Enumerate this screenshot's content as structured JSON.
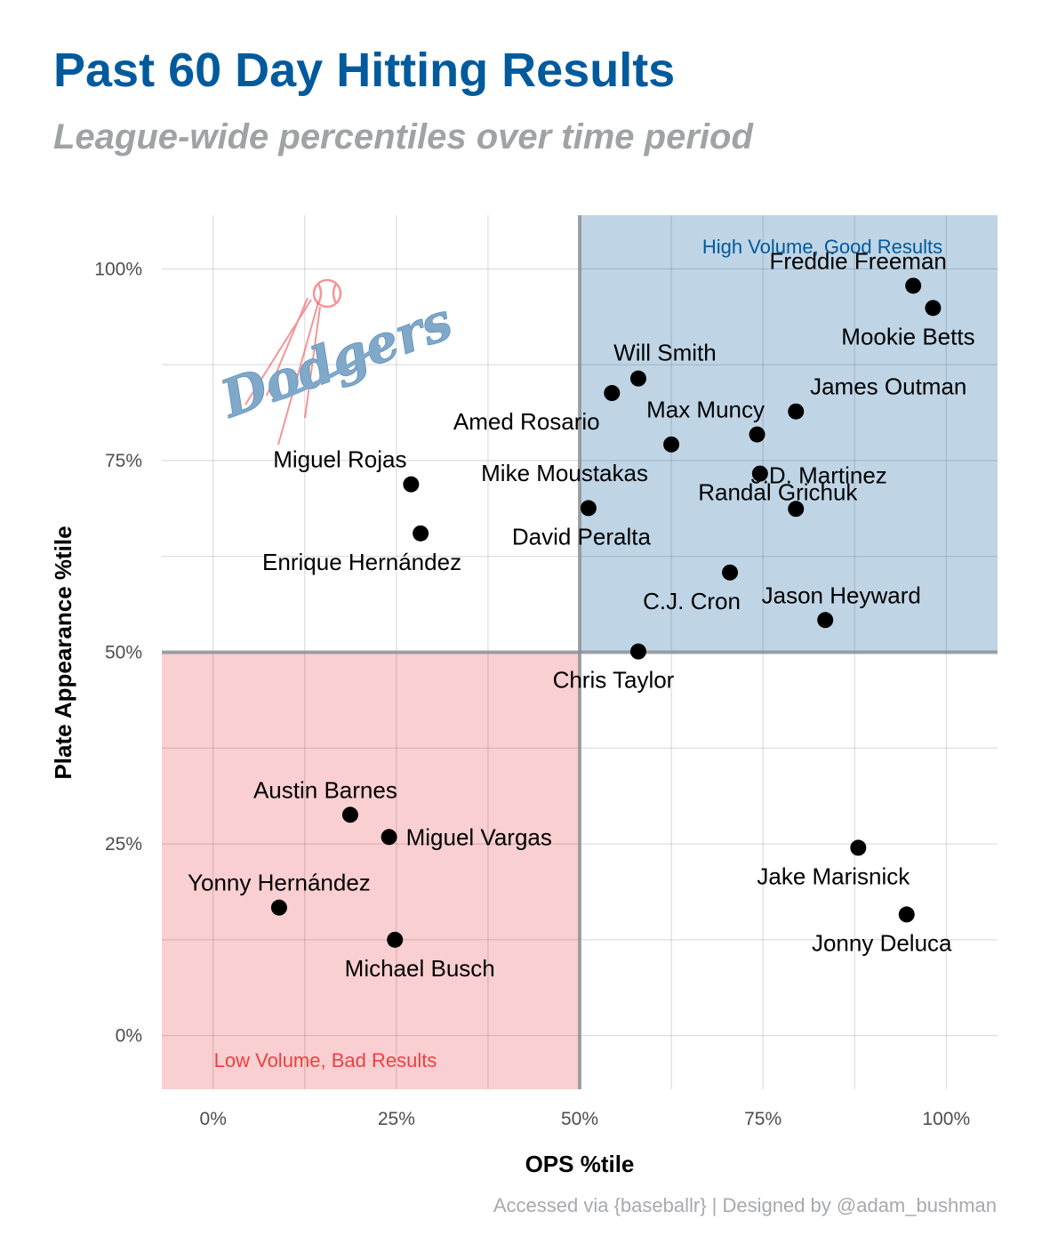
{
  "title": "Past 60 Day Hitting Results",
  "subtitle": "League-wide percentiles over time period",
  "caption": "Accessed via {baseballr} | Designed by @adam_bushman",
  "logo_text": "Dodgers",
  "colors": {
    "title": "#005a9c",
    "good_zone": "#bfd5e6",
    "bad_zone": "#f9cfd1",
    "good_label": "#005a9c",
    "bad_label": "#ef3e42",
    "divider": "#8a8f94",
    "point": "#000000"
  },
  "chart_data": {
    "type": "scatter",
    "xlabel": "OPS %tile",
    "ylabel": "Plate Appearance %tile",
    "xlim": [
      -0.07,
      1.07
    ],
    "ylim": [
      -0.07,
      1.07
    ],
    "x_ticks": [
      0,
      0.25,
      0.5,
      0.75,
      1.0
    ],
    "x_tick_labels": [
      "0%",
      "25%",
      "50%",
      "75%",
      "100%"
    ],
    "y_ticks": [
      0,
      0.25,
      0.5,
      0.75,
      1.0
    ],
    "y_tick_labels": [
      "0%",
      "25%",
      "50%",
      "75%",
      "100%"
    ],
    "grid": true,
    "thresholds": {
      "x": 0.5,
      "y": 0.5
    },
    "zones": [
      {
        "name": "good",
        "label": "High Volume, Good Results",
        "x": [
          0.5,
          1.07
        ],
        "y": [
          0.5,
          1.07
        ]
      },
      {
        "name": "bad",
        "label": "Low Volume, Bad Results",
        "x": [
          -0.07,
          0.5
        ],
        "y": [
          -0.07,
          0.5
        ]
      }
    ],
    "points": [
      {
        "name": "Freddie Freeman",
        "x": 0.955,
        "y": 0.978
      },
      {
        "name": "Mookie Betts",
        "x": 0.982,
        "y": 0.949
      },
      {
        "name": "Will Smith",
        "x": 0.58,
        "y": 0.857
      },
      {
        "name": "Amed Rosario",
        "x": 0.544,
        "y": 0.838
      },
      {
        "name": "James Outman",
        "x": 0.795,
        "y": 0.814
      },
      {
        "name": "Max Muncy",
        "x": 0.742,
        "y": 0.784
      },
      {
        "name": "Mike Moustakas",
        "x": 0.625,
        "y": 0.771
      },
      {
        "name": "Randal Grichuk",
        "x": 0.746,
        "y": 0.733
      },
      {
        "name": "Miguel Rojas",
        "x": 0.27,
        "y": 0.719
      },
      {
        "name": "David Peralta",
        "x": 0.512,
        "y": 0.688
      },
      {
        "name": "J.D. Martinez",
        "x": 0.795,
        "y": 0.687
      },
      {
        "name": "Enrique Hernández",
        "x": 0.283,
        "y": 0.655
      },
      {
        "name": "C.J. Cron",
        "x": 0.705,
        "y": 0.604
      },
      {
        "name": "Jason Heyward",
        "x": 0.835,
        "y": 0.542
      },
      {
        "name": "Chris Taylor",
        "x": 0.58,
        "y": 0.501
      },
      {
        "name": "Austin Barnes",
        "x": 0.187,
        "y": 0.288
      },
      {
        "name": "Miguel Vargas",
        "x": 0.24,
        "y": 0.259
      },
      {
        "name": "Jake Marisnick",
        "x": 0.88,
        "y": 0.245
      },
      {
        "name": "Yonny Hernández",
        "x": 0.09,
        "y": 0.167
      },
      {
        "name": "Jonny Deluca",
        "x": 0.946,
        "y": 0.158
      },
      {
        "name": "Michael Busch",
        "x": 0.248,
        "y": 0.125
      }
    ]
  }
}
